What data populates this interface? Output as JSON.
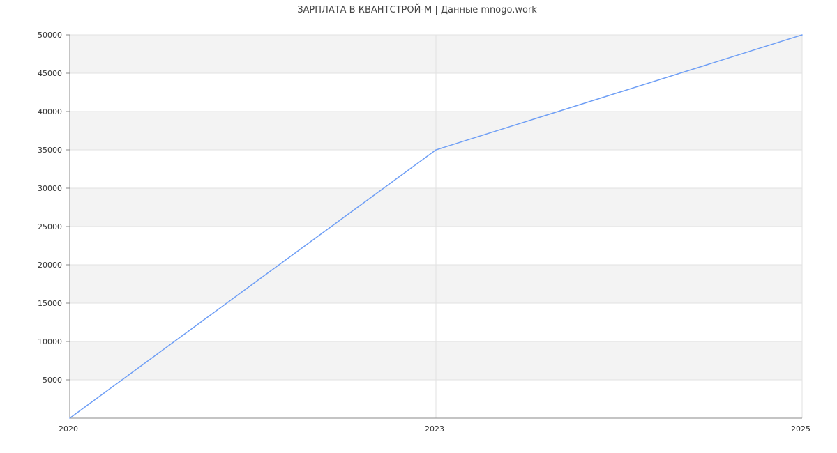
{
  "chart_data": {
    "type": "line",
    "title": "ЗАРПЛАТА В КВАНТСТРОЙ-М | Данные mnogo.work",
    "xlabel": "",
    "ylabel": "",
    "categories": [
      "2020",
      "2023",
      "2025"
    ],
    "series": [
      {
        "values": [
          0,
          35000,
          50000
        ],
        "color": "#6e9ef5"
      }
    ],
    "ylim": [
      0,
      50000
    ],
    "yticks": [
      5000,
      10000,
      15000,
      20000,
      25000,
      30000,
      35000,
      40000,
      45000,
      50000
    ],
    "ytick_labels": [
      "5000",
      "10000",
      "15000",
      "20000",
      "25000",
      "30000",
      "35000",
      "40000",
      "45000",
      "50000"
    ],
    "grid": true,
    "band_color": "#f3f3f3",
    "legend": "none"
  }
}
